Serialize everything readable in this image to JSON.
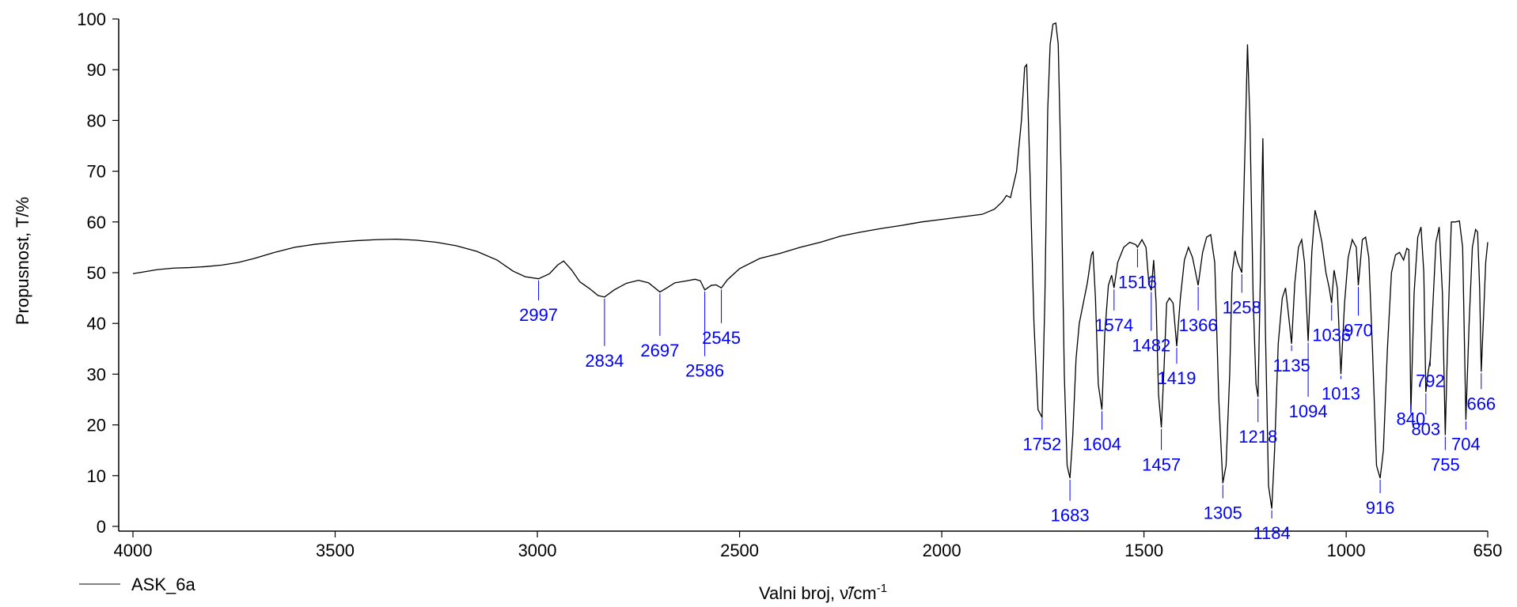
{
  "chart_data": {
    "type": "line",
    "title": "",
    "xlabel": "Valni broj, ν̃/cm",
    "xlabel_superscript": "-1",
    "ylabel": "Propusnost, T/%",
    "xlim": [
      4000,
      650
    ],
    "ylim": [
      0,
      100
    ],
    "x_reversed": true,
    "x_ticks": [
      4000,
      3500,
      3000,
      2500,
      2000,
      1500,
      1000,
      650
    ],
    "y_ticks": [
      0,
      10,
      20,
      30,
      40,
      50,
      60,
      70,
      80,
      90,
      100
    ],
    "grid": false,
    "legend_position": "bottom-left",
    "colors": {
      "line": "#000000",
      "peak_labels": "#0000ff"
    },
    "series": [
      {
        "name": "ASK_6a",
        "points": [
          [
            4000,
            49.8
          ],
          [
            3970,
            50.2
          ],
          [
            3940,
            50.6
          ],
          [
            3900,
            50.9
          ],
          [
            3860,
            51.0
          ],
          [
            3820,
            51.2
          ],
          [
            3780,
            51.5
          ],
          [
            3740,
            52.0
          ],
          [
            3700,
            52.8
          ],
          [
            3650,
            54.0
          ],
          [
            3600,
            55.0
          ],
          [
            3550,
            55.6
          ],
          [
            3500,
            56.0
          ],
          [
            3450,
            56.3
          ],
          [
            3400,
            56.5
          ],
          [
            3350,
            56.6
          ],
          [
            3300,
            56.4
          ],
          [
            3250,
            56.0
          ],
          [
            3200,
            55.3
          ],
          [
            3150,
            54.2
          ],
          [
            3100,
            52.5
          ],
          [
            3060,
            50.3
          ],
          [
            3030,
            49.2
          ],
          [
            2997,
            48.8
          ],
          [
            2970,
            49.8
          ],
          [
            2950,
            51.5
          ],
          [
            2935,
            52.3
          ],
          [
            2915,
            50.5
          ],
          [
            2895,
            48.2
          ],
          [
            2870,
            46.8
          ],
          [
            2850,
            45.5
          ],
          [
            2834,
            45.2
          ],
          [
            2810,
            46.6
          ],
          [
            2780,
            47.9
          ],
          [
            2750,
            48.5
          ],
          [
            2725,
            48.0
          ],
          [
            2697,
            46.2
          ],
          [
            2680,
            47.0
          ],
          [
            2660,
            48.0
          ],
          [
            2630,
            48.4
          ],
          [
            2610,
            48.7
          ],
          [
            2597,
            48.4
          ],
          [
            2586,
            46.6
          ],
          [
            2570,
            47.5
          ],
          [
            2558,
            47.6
          ],
          [
            2545,
            47.0
          ],
          [
            2530,
            48.6
          ],
          [
            2500,
            50.8
          ],
          [
            2450,
            52.8
          ],
          [
            2400,
            53.8
          ],
          [
            2350,
            55.0
          ],
          [
            2300,
            56.0
          ],
          [
            2250,
            57.2
          ],
          [
            2200,
            58.0
          ],
          [
            2150,
            58.7
          ],
          [
            2100,
            59.3
          ],
          [
            2050,
            60.0
          ],
          [
            2000,
            60.5
          ],
          [
            1950,
            61.0
          ],
          [
            1900,
            61.5
          ],
          [
            1870,
            62.5
          ],
          [
            1850,
            64.0
          ],
          [
            1840,
            65.2
          ],
          [
            1830,
            64.8
          ],
          [
            1815,
            70.0
          ],
          [
            1803,
            80.0
          ],
          [
            1795,
            90.5
          ],
          [
            1790,
            91.0
          ],
          [
            1782,
            70.0
          ],
          [
            1772,
            40.0
          ],
          [
            1762,
            23.0
          ],
          [
            1752,
            21.5
          ],
          [
            1745,
            45.0
          ],
          [
            1738,
            82.0
          ],
          [
            1732,
            95.0
          ],
          [
            1725,
            99.0
          ],
          [
            1718,
            99.2
          ],
          [
            1712,
            95.0
          ],
          [
            1705,
            70.0
          ],
          [
            1697,
            30.0
          ],
          [
            1690,
            12.0
          ],
          [
            1683,
            9.5
          ],
          [
            1676,
            18.0
          ],
          [
            1668,
            33.0
          ],
          [
            1660,
            40.0
          ],
          [
            1650,
            44.0
          ],
          [
            1640,
            48.0
          ],
          [
            1630,
            53.5
          ],
          [
            1626,
            54.2
          ],
          [
            1620,
            45.0
          ],
          [
            1613,
            28.0
          ],
          [
            1604,
            23.0
          ],
          [
            1597,
            38.0
          ],
          [
            1588,
            47.5
          ],
          [
            1580,
            49.5
          ],
          [
            1574,
            47.0
          ],
          [
            1565,
            52.0
          ],
          [
            1550,
            55.0
          ],
          [
            1535,
            56.0
          ],
          [
            1520,
            55.5
          ],
          [
            1516,
            55.0
          ],
          [
            1505,
            56.5
          ],
          [
            1495,
            55.0
          ],
          [
            1488,
            48.0
          ],
          [
            1482,
            46.5
          ],
          [
            1476,
            52.5
          ],
          [
            1470,
            44.0
          ],
          [
            1464,
            26.0
          ],
          [
            1457,
            19.5
          ],
          [
            1450,
            32.0
          ],
          [
            1444,
            44.0
          ],
          [
            1437,
            45.0
          ],
          [
            1428,
            44.0
          ],
          [
            1419,
            35.5
          ],
          [
            1410,
            45.0
          ],
          [
            1400,
            52.5
          ],
          [
            1390,
            55.0
          ],
          [
            1380,
            53.0
          ],
          [
            1366,
            47.5
          ],
          [
            1355,
            54.0
          ],
          [
            1345,
            57.0
          ],
          [
            1335,
            57.5
          ],
          [
            1325,
            52.0
          ],
          [
            1315,
            25.0
          ],
          [
            1305,
            8.5
          ],
          [
            1297,
            12.0
          ],
          [
            1288,
            30.0
          ],
          [
            1282,
            50.0
          ],
          [
            1275,
            54.3
          ],
          [
            1268,
            52.0
          ],
          [
            1258,
            50.0
          ],
          [
            1250,
            75.0
          ],
          [
            1244,
            95.0
          ],
          [
            1238,
            80.0
          ],
          [
            1230,
            45.0
          ],
          [
            1223,
            28.0
          ],
          [
            1218,
            25.5
          ],
          [
            1212,
            50.0
          ],
          [
            1206,
            76.5
          ],
          [
            1200,
            40.0
          ],
          [
            1192,
            8.0
          ],
          [
            1184,
            3.5
          ],
          [
            1177,
            15.0
          ],
          [
            1168,
            36.0
          ],
          [
            1158,
            45.0
          ],
          [
            1150,
            47.0
          ],
          [
            1143,
            42.0
          ],
          [
            1135,
            36.0
          ],
          [
            1127,
            48.0
          ],
          [
            1118,
            55.0
          ],
          [
            1110,
            56.5
          ],
          [
            1103,
            52.0
          ],
          [
            1094,
            36.5
          ],
          [
            1085,
            54.0
          ],
          [
            1077,
            62.3
          ],
          [
            1070,
            60.0
          ],
          [
            1060,
            56.0
          ],
          [
            1050,
            50.0
          ],
          [
            1042,
            47.0
          ],
          [
            1036,
            44.0
          ],
          [
            1030,
            50.5
          ],
          [
            1022,
            47.0
          ],
          [
            1013,
            30.0
          ],
          [
            1004,
            44.0
          ],
          [
            995,
            53.0
          ],
          [
            985,
            56.5
          ],
          [
            975,
            55.0
          ],
          [
            970,
            47.5
          ],
          [
            960,
            56.5
          ],
          [
            952,
            57.0
          ],
          [
            944,
            53.0
          ],
          [
            935,
            35.0
          ],
          [
            925,
            12.0
          ],
          [
            916,
            9.5
          ],
          [
            908,
            15.0
          ],
          [
            898,
            35.0
          ],
          [
            888,
            50.0
          ],
          [
            878,
            53.5
          ],
          [
            868,
            54.0
          ],
          [
            858,
            52.5
          ],
          [
            850,
            54.8
          ],
          [
            845,
            54.5
          ],
          [
            840,
            22.5
          ],
          [
            832,
            46.0
          ],
          [
            823,
            57.0
          ],
          [
            815,
            59.0
          ],
          [
            808,
            50.0
          ],
          [
            803,
            26.5
          ],
          [
            798,
            30.0
          ],
          [
            792,
            33.0
          ],
          [
            786,
            43.0
          ],
          [
            778,
            56.0
          ],
          [
            770,
            59.0
          ],
          [
            762,
            46.0
          ],
          [
            755,
            18.0
          ],
          [
            748,
            40.0
          ],
          [
            740,
            60.0
          ],
          [
            730,
            60.0
          ],
          [
            720,
            60.2
          ],
          [
            712,
            55.0
          ],
          [
            704,
            21.0
          ],
          [
            696,
            40.0
          ],
          [
            688,
            55.0
          ],
          [
            680,
            58.5
          ],
          [
            675,
            58.0
          ],
          [
            670,
            47.0
          ],
          [
            666,
            30.5
          ],
          [
            660,
            42.0
          ],
          [
            655,
            52.0
          ],
          [
            650,
            56.0
          ]
        ]
      }
    ],
    "peak_annotations": [
      {
        "label": "2997",
        "x": 2997,
        "y": 48.8,
        "text_y": 40.5
      },
      {
        "label": "2834",
        "x": 2834,
        "y": 45.2,
        "text_y": 31.5
      },
      {
        "label": "2697",
        "x": 2697,
        "y": 46.2,
        "text_y": 33.5
      },
      {
        "label": "2586",
        "x": 2586,
        "y": 46.6,
        "text_y": 29.5
      },
      {
        "label": "2545",
        "x": 2545,
        "y": 47.0,
        "text_y": 36.0
      },
      {
        "label": "1752",
        "x": 1752,
        "y": 21.5,
        "text_y": 15.0
      },
      {
        "label": "1683",
        "x": 1683,
        "y": 9.5,
        "text_y": 1.0
      },
      {
        "label": "1604",
        "x": 1604,
        "y": 23.0,
        "text_y": 15.0
      },
      {
        "label": "1574",
        "x": 1574,
        "y": 47.0,
        "text_y": 38.5
      },
      {
        "label": "1516",
        "x": 1516,
        "y": 55.0,
        "text_y": 47.0
      },
      {
        "label": "1482",
        "x": 1482,
        "y": 46.5,
        "text_y": 34.5
      },
      {
        "label": "1457",
        "x": 1457,
        "y": 19.5,
        "text_y": 11.0
      },
      {
        "label": "1419",
        "x": 1419,
        "y": 35.5,
        "text_y": 28.0
      },
      {
        "label": "1366",
        "x": 1366,
        "y": 47.5,
        "text_y": 38.5
      },
      {
        "label": "1305",
        "x": 1305,
        "y": 8.5,
        "text_y": 1.5
      },
      {
        "label": "1258",
        "x": 1258,
        "y": 50.0,
        "text_y": 42.0
      },
      {
        "label": "1218",
        "x": 1218,
        "y": 25.5,
        "text_y": 16.5
      },
      {
        "label": "1184",
        "x": 1184,
        "y": 3.5,
        "text_y": -2.5
      },
      {
        "label": "1135",
        "x": 1135,
        "y": 36.0,
        "text_y": 30.5
      },
      {
        "label": "1094",
        "x": 1094,
        "y": 36.5,
        "text_y": 21.5
      },
      {
        "label": "1036",
        "x": 1036,
        "y": 44.0,
        "text_y": 36.5
      },
      {
        "label": "1013",
        "x": 1013,
        "y": 30.0,
        "text_y": 25.0
      },
      {
        "label": "970",
        "x": 970,
        "y": 47.5,
        "text_y": 37.5
      },
      {
        "label": "916",
        "x": 916,
        "y": 9.5,
        "text_y": 2.5
      },
      {
        "label": "840",
        "x": 840,
        "y": 22.5,
        "text_y": 20.0
      },
      {
        "label": "803",
        "x": 803,
        "y": 26.5,
        "text_y": 18.0
      },
      {
        "label": "792",
        "x": 792,
        "y": 33.0,
        "text_y": 27.5
      },
      {
        "label": "755",
        "x": 755,
        "y": 18.0,
        "text_y": 11.0
      },
      {
        "label": "704",
        "x": 704,
        "y": 21.0,
        "text_y": 15.0
      },
      {
        "label": "666",
        "x": 666,
        "y": 30.5,
        "text_y": 23.0
      }
    ]
  }
}
